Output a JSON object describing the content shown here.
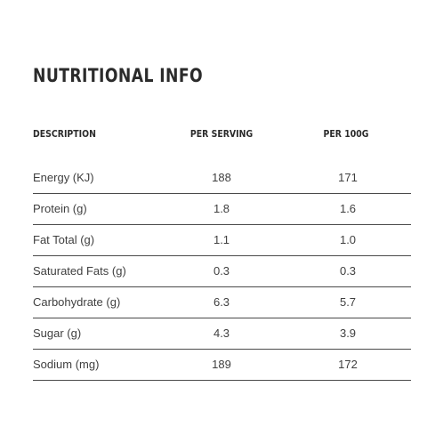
{
  "title": "NUTRITIONAL INFO",
  "headers": {
    "description": "DESCRIPTION",
    "per_serving": "PER SERVING",
    "per_100g": "PER 100G"
  },
  "rows": [
    {
      "description": "Energy (KJ)",
      "per_serving": "188",
      "per_100g": "171"
    },
    {
      "description": "Protein (g)",
      "per_serving": "1.8",
      "per_100g": "1.6"
    },
    {
      "description": "Fat Total (g)",
      "per_serving": "1.1",
      "per_100g": "1.0"
    },
    {
      "description": "Saturated Fats (g)",
      "per_serving": "0.3",
      "per_100g": "0.3"
    },
    {
      "description": "Carbohydrate (g)",
      "per_serving": "6.3",
      "per_100g": "5.7"
    },
    {
      "description": "Sugar (g)",
      "per_serving": "4.3",
      "per_100g": "3.9"
    },
    {
      "description": "Sodium (mg)",
      "per_serving": "189",
      "per_100g": "172"
    }
  ]
}
